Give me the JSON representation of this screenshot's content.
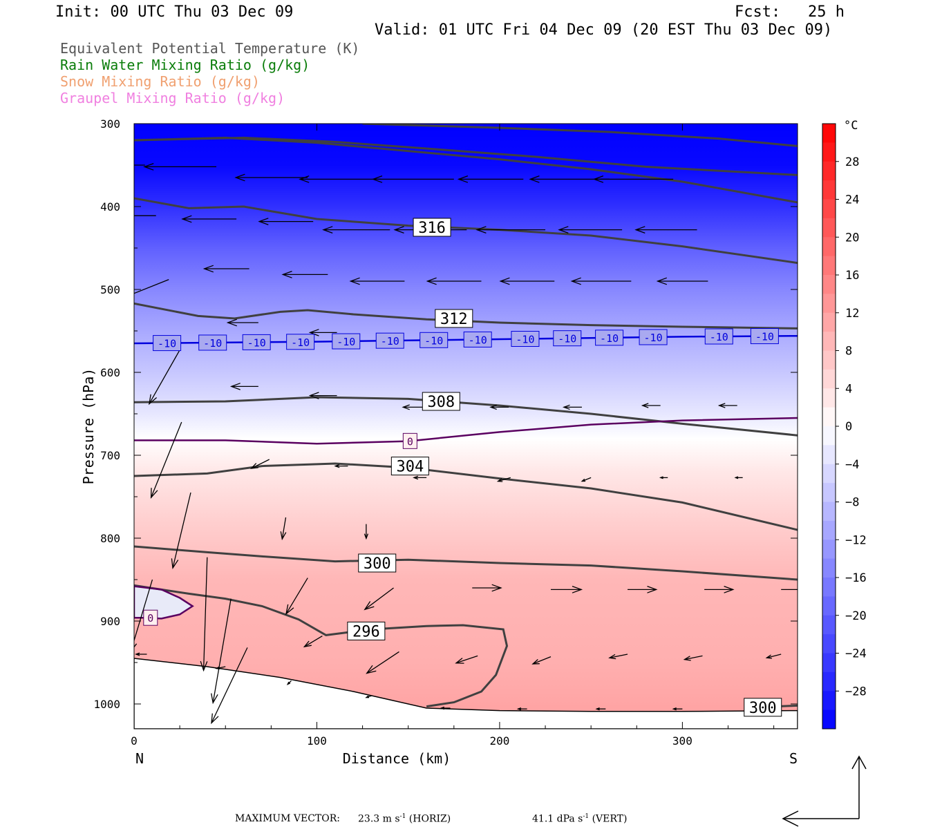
{
  "header": {
    "init": "Init: 00 UTC Thu 03 Dec 09",
    "fcst": "Fcst:   25 h",
    "valid": "Valid: 01 UTC Fri 04 Dec 09 (20 EST Thu 03 Dec 09)"
  },
  "titles": [
    {
      "text": "Equivalent Potential Temperature (K)",
      "color": "#555555"
    },
    {
      "text": "Rain Water Mixing Ratio (g/kg)",
      "color": "#0a7d0a"
    },
    {
      "text": "Snow Mixing Ratio (g/kg)",
      "color": "#f0a070"
    },
    {
      "text": "Graupel Mixing Ratio (g/kg)",
      "color": "#f080e0"
    }
  ],
  "footer": {
    "label": "MAXIMUM VECTOR:",
    "horiz": "23.3 m s",
    "horiz_sup": "-1",
    "horiz_unit": "(HORIZ)",
    "vert": "41.1 dPa s",
    "vert_sup": "-1",
    "vert_unit": "(VERT)"
  },
  "chart_data": {
    "type": "cross-section",
    "xlabel": "Distance (km)",
    "ylabel": "Pressure (hPa)",
    "xlim": [
      0,
      363
    ],
    "ylim": [
      1030,
      300
    ],
    "xticks": [
      0,
      100,
      200,
      300
    ],
    "yticks": [
      300,
      400,
      500,
      600,
      700,
      800,
      900,
      1000
    ],
    "left_end_label": "N",
    "right_end_label": "S",
    "colorbar": {
      "unit": "°C",
      "ticks": [
        28,
        24,
        20,
        16,
        12,
        8,
        4,
        0,
        -4,
        -8,
        -12,
        -16,
        -20,
        -24,
        -28
      ],
      "range": [
        -32,
        32
      ]
    },
    "theta_e_contours": [
      {
        "label": "316",
        "label_at": [
          163,
          425
        ],
        "points": [
          [
            0,
            390
          ],
          [
            30,
            402
          ],
          [
            60,
            400
          ],
          [
            100,
            415
          ],
          [
            150,
            423
          ],
          [
            200,
            428
          ],
          [
            250,
            435
          ],
          [
            300,
            448
          ],
          [
            363,
            468
          ]
        ]
      },
      {
        "label": "",
        "points": [
          [
            0,
            320
          ],
          [
            50,
            317
          ],
          [
            100,
            323
          ],
          [
            150,
            333
          ],
          [
            200,
            343
          ],
          [
            250,
            355
          ],
          [
            300,
            370
          ],
          [
            363,
            395
          ]
        ]
      },
      {
        "label": "",
        "points": [
          [
            0,
            320
          ],
          [
            60,
            317
          ],
          [
            110,
            322
          ],
          [
            160,
            330
          ],
          [
            220,
            340
          ],
          [
            280,
            352
          ],
          [
            363,
            362
          ]
        ]
      },
      {
        "label": "",
        "points": [
          [
            125,
            300
          ],
          [
            200,
            305
          ],
          [
            260,
            310
          ],
          [
            320,
            318
          ],
          [
            363,
            327
          ]
        ]
      },
      {
        "label": "312",
        "label_at": [
          175,
          535
        ],
        "points": [
          [
            0,
            517
          ],
          [
            35,
            532
          ],
          [
            55,
            535
          ],
          [
            80,
            527
          ],
          [
            95,
            525
          ],
          [
            120,
            530
          ],
          [
            160,
            536
          ],
          [
            200,
            540
          ],
          [
            250,
            543
          ],
          [
            300,
            545
          ],
          [
            363,
            547
          ]
        ]
      },
      {
        "label": "308",
        "label_at": [
          168,
          635
        ],
        "points": [
          [
            0,
            636
          ],
          [
            50,
            635
          ],
          [
            100,
            630
          ],
          [
            150,
            632
          ],
          [
            200,
            640
          ],
          [
            250,
            650
          ],
          [
            300,
            662
          ],
          [
            363,
            676
          ]
        ]
      },
      {
        "label": "304",
        "label_at": [
          151,
          713
        ],
        "points": [
          [
            0,
            725
          ],
          [
            40,
            722
          ],
          [
            70,
            713
          ],
          [
            110,
            710
          ],
          [
            150,
            715
          ],
          [
            200,
            728
          ],
          [
            250,
            740
          ],
          [
            300,
            757
          ],
          [
            363,
            790
          ]
        ]
      },
      {
        "label": "300",
        "label_at": [
          133,
          830
        ],
        "points": [
          [
            0,
            810
          ],
          [
            40,
            817
          ],
          [
            70,
            822
          ],
          [
            110,
            828
          ],
          [
            150,
            826
          ],
          [
            200,
            830
          ],
          [
            250,
            833
          ],
          [
            300,
            840
          ],
          [
            363,
            850
          ]
        ]
      },
      {
        "label": "296",
        "label_at": [
          127,
          912
        ],
        "points": [
          [
            0,
            857
          ],
          [
            30,
            867
          ],
          [
            50,
            873
          ],
          [
            70,
            882
          ],
          [
            90,
            898
          ],
          [
            105,
            917
          ],
          [
            130,
            910
          ],
          [
            160,
            906
          ],
          [
            180,
            905
          ],
          [
            202,
            910
          ],
          [
            204,
            930
          ],
          [
            198,
            965
          ],
          [
            190,
            985
          ],
          [
            175,
            998
          ],
          [
            160,
            1003
          ]
        ]
      },
      {
        "label": "300",
        "label_at": [
          344,
          1004
        ],
        "points": [
          [
            340,
            1004
          ],
          [
            363,
            1002
          ]
        ]
      }
    ],
    "isotherms": [
      {
        "label": "-10",
        "color": "#0000dd",
        "value": -10,
        "points": [
          [
            0,
            565
          ],
          [
            100,
            563
          ],
          [
            200,
            560
          ],
          [
            300,
            557
          ],
          [
            363,
            556
          ]
        ],
        "label_x": [
          18,
          43,
          67,
          91,
          116,
          140,
          164,
          188,
          214,
          237,
          260,
          284,
          320,
          345
        ]
      },
      {
        "label": "0",
        "color": "#5a0060",
        "value": 0,
        "points": [
          [
            0,
            682
          ],
          [
            50,
            682
          ],
          [
            100,
            686
          ],
          [
            150,
            683
          ],
          [
            200,
            672
          ],
          [
            250,
            663
          ],
          [
            300,
            658
          ],
          [
            363,
            655
          ]
        ],
        "label_x": [
          151
        ]
      },
      {
        "label": "0",
        "color": "#5a0060",
        "value": 0,
        "closed": true,
        "points": [
          [
            0,
            858
          ],
          [
            15,
            862
          ],
          [
            25,
            872
          ],
          [
            32,
            882
          ],
          [
            25,
            892
          ],
          [
            15,
            897
          ],
          [
            5,
            896
          ],
          [
            0,
            896
          ]
        ],
        "label_x": [
          9
        ]
      }
    ],
    "temperature_levels": [
      {
        "p": 300,
        "t": -35
      },
      {
        "p": 350,
        "t": -31
      },
      {
        "p": 400,
        "t": -26
      },
      {
        "p": 450,
        "t": -20
      },
      {
        "p": 500,
        "t": -15
      },
      {
        "p": 560,
        "t": -10
      },
      {
        "p": 600,
        "t": -7
      },
      {
        "p": 650,
        "t": -3
      },
      {
        "p": 680,
        "t": 0
      },
      {
        "p": 720,
        "t": 3
      },
      {
        "p": 780,
        "t": 6
      },
      {
        "p": 850,
        "t": 9
      },
      {
        "p": 950,
        "t": 10
      },
      {
        "p": 1030,
        "t": 12
      }
    ],
    "terrain": [
      [
        0,
        945
      ],
      [
        40,
        955
      ],
      [
        80,
        968
      ],
      [
        120,
        985
      ],
      [
        140,
        995
      ],
      [
        160,
        1005
      ],
      [
        200,
        1008
      ],
      [
        250,
        1009
      ],
      [
        300,
        1009
      ],
      [
        363,
        1008
      ]
    ],
    "wind_vectors": [
      {
        "x": 6,
        "p": 350,
        "dx": -36,
        "dy": 0
      },
      {
        "x": 45,
        "p": 352,
        "dx": -40,
        "dy": 0
      },
      {
        "x": 95,
        "p": 365,
        "dx": -40,
        "dy": 0
      },
      {
        "x": 135,
        "p": 367,
        "dx": -45,
        "dy": 0
      },
      {
        "x": 175,
        "p": 367,
        "dx": -45,
        "dy": 0
      },
      {
        "x": 213,
        "p": 367,
        "dx": -36,
        "dy": 0
      },
      {
        "x": 260,
        "p": 367,
        "dx": -44,
        "dy": 0
      },
      {
        "x": 295,
        "p": 367,
        "dx": -44,
        "dy": 0
      },
      {
        "x": 12,
        "p": 411,
        "dx": -30,
        "dy": 0
      },
      {
        "x": 56,
        "p": 415,
        "dx": -30,
        "dy": 0
      },
      {
        "x": 98,
        "p": 418,
        "dx": -30,
        "dy": 0
      },
      {
        "x": 140,
        "p": 428,
        "dx": -37,
        "dy": 0
      },
      {
        "x": 182,
        "p": 428,
        "dx": -40,
        "dy": 0
      },
      {
        "x": 225,
        "p": 428,
        "dx": -38,
        "dy": 0
      },
      {
        "x": 267,
        "p": 428,
        "dx": -35,
        "dy": 0
      },
      {
        "x": 308,
        "p": 428,
        "dx": -34,
        "dy": 0
      },
      {
        "x": 19,
        "p": 488,
        "dx": -25,
        "dy": -10
      },
      {
        "x": 63,
        "p": 475,
        "dx": -25,
        "dy": 0
      },
      {
        "x": 106,
        "p": 482,
        "dx": -25,
        "dy": 0
      },
      {
        "x": 148,
        "p": 490,
        "dx": -30,
        "dy": 0
      },
      {
        "x": 190,
        "p": 490,
        "dx": -30,
        "dy": 0
      },
      {
        "x": 230,
        "p": 490,
        "dx": -30,
        "dy": 0
      },
      {
        "x": 272,
        "p": 490,
        "dx": -33,
        "dy": 0
      },
      {
        "x": 314,
        "p": 490,
        "dx": -28,
        "dy": 0
      },
      {
        "x": 25,
        "p": 573,
        "dx": -17,
        "dy": -30
      },
      {
        "x": 68,
        "p": 540,
        "dx": -17,
        "dy": 0
      },
      {
        "x": 111,
        "p": 552,
        "dx": -15,
        "dy": 0
      },
      {
        "x": 26,
        "p": 660,
        "dx": -17,
        "dy": -42
      },
      {
        "x": 68,
        "p": 617,
        "dx": -15,
        "dy": 0
      },
      {
        "x": 111,
        "p": 628,
        "dx": -15,
        "dy": 0
      },
      {
        "x": 158,
        "p": 642,
        "dx": -11,
        "dy": 0
      },
      {
        "x": 205,
        "p": 642,
        "dx": -10,
        "dy": 0
      },
      {
        "x": 245,
        "p": 642,
        "dx": -10,
        "dy": 0
      },
      {
        "x": 288,
        "p": 640,
        "dx": -10,
        "dy": 0
      },
      {
        "x": 330,
        "p": 640,
        "dx": -10,
        "dy": 0
      },
      {
        "x": 31,
        "p": 745,
        "dx": -10,
        "dy": -42
      },
      {
        "x": 74,
        "p": 705,
        "dx": -10,
        "dy": -5
      },
      {
        "x": 117,
        "p": 713,
        "dx": -7,
        "dy": 0
      },
      {
        "x": 160,
        "p": 727,
        "dx": -7,
        "dy": 0
      },
      {
        "x": 206,
        "p": 727,
        "dx": -7,
        "dy": -2
      },
      {
        "x": 250,
        "p": 727,
        "dx": -5,
        "dy": -2
      },
      {
        "x": 292,
        "p": 727,
        "dx": -4,
        "dy": 0
      },
      {
        "x": 333,
        "p": 727,
        "dx": -4,
        "dy": 0
      },
      {
        "x": 40,
        "p": 823,
        "dx": -2,
        "dy": -63
      },
      {
        "x": 83,
        "p": 775,
        "dx": -2,
        "dy": -12
      },
      {
        "x": 127,
        "p": 783,
        "dx": 0,
        "dy": -8
      },
      {
        "x": 10,
        "p": 850,
        "dx": -12,
        "dy": -40
      },
      {
        "x": 53,
        "p": 873,
        "dx": -10,
        "dy": -58
      },
      {
        "x": 95,
        "p": 848,
        "dx": -12,
        "dy": -20
      },
      {
        "x": 142,
        "p": 860,
        "dx": -16,
        "dy": -12
      },
      {
        "x": 185,
        "p": 860,
        "dx": 16,
        "dy": 0
      },
      {
        "x": 228,
        "p": 862,
        "dx": 17,
        "dy": 0
      },
      {
        "x": 270,
        "p": 862,
        "dx": 16,
        "dy": 0
      },
      {
        "x": 312,
        "p": 862,
        "dx": 16,
        "dy": 0
      },
      {
        "x": 354,
        "p": 862,
        "dx": 16,
        "dy": 0
      },
      {
        "x": 62,
        "p": 932,
        "dx": -20,
        "dy": -42
      },
      {
        "x": 103,
        "p": 918,
        "dx": -10,
        "dy": -6
      },
      {
        "x": 145,
        "p": 937,
        "dx": -18,
        "dy": -12
      },
      {
        "x": 188,
        "p": 942,
        "dx": -12,
        "dy": -4
      },
      {
        "x": 228,
        "p": 943,
        "dx": -10,
        "dy": -4
      },
      {
        "x": 270,
        "p": 940,
        "dx": -10,
        "dy": -2
      },
      {
        "x": 311,
        "p": 942,
        "dx": -10,
        "dy": -2
      },
      {
        "x": 354,
        "p": 940,
        "dx": -8,
        "dy": -2
      },
      {
        "x": 7,
        "p": 940,
        "dx": -6,
        "dy": 0
      },
      {
        "x": 50,
        "p": 955,
        "dx": -5,
        "dy": -1
      },
      {
        "x": 86,
        "p": 972,
        "dx": -2,
        "dy": -2
      },
      {
        "x": 130,
        "p": 990,
        "dx": -3,
        "dy": -1
      },
      {
        "x": 173,
        "p": 1005,
        "dx": -5,
        "dy": 0
      },
      {
        "x": 215,
        "p": 1006,
        "dx": -5,
        "dy": 0
      },
      {
        "x": 258,
        "p": 1006,
        "dx": -5,
        "dy": 0
      },
      {
        "x": 300,
        "p": 1006,
        "dx": -5,
        "dy": 0
      }
    ]
  }
}
